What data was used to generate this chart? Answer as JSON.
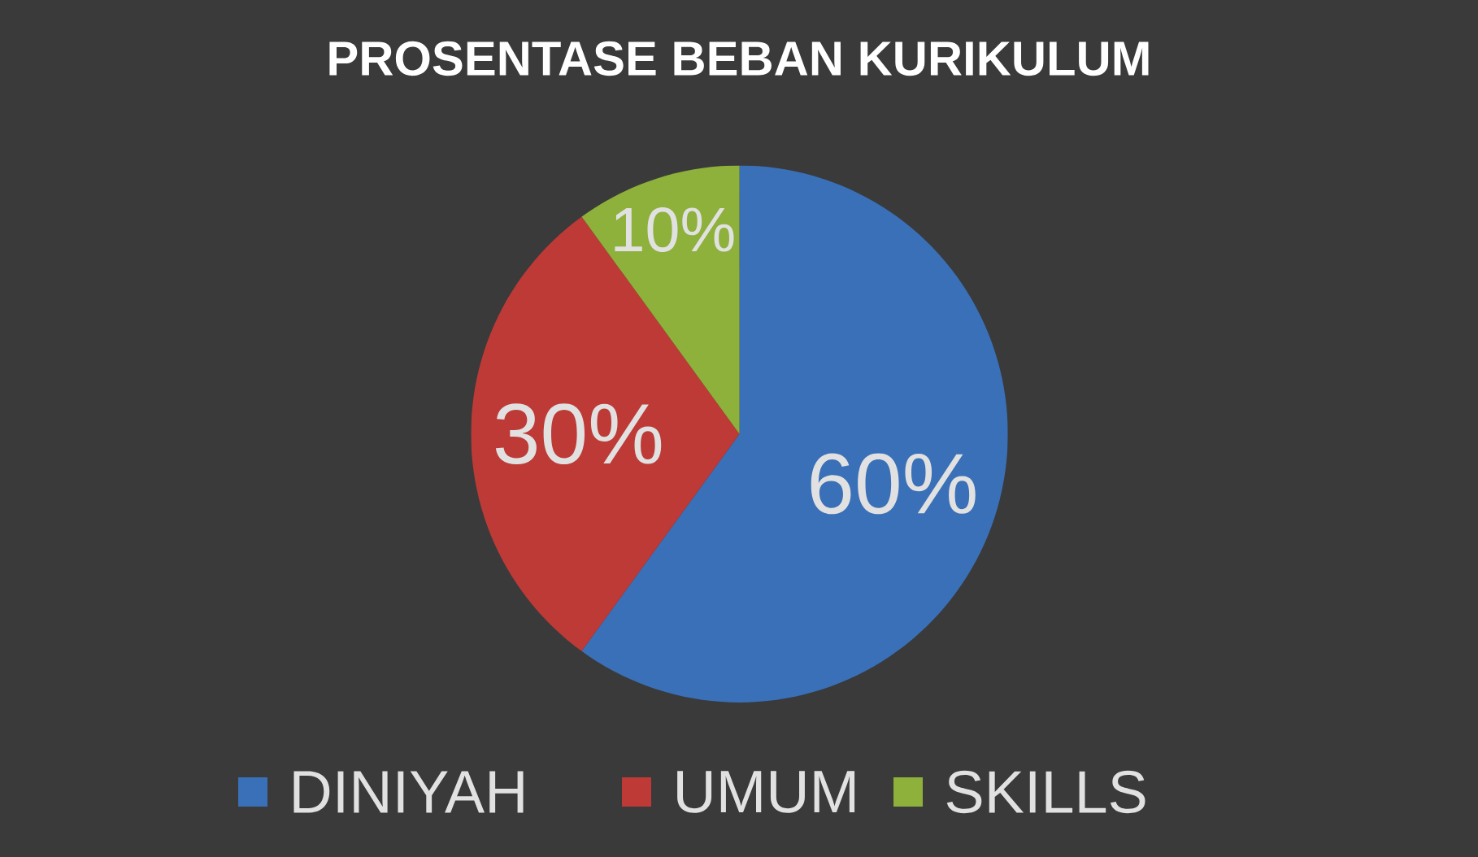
{
  "chart_data": {
    "type": "pie",
    "title": "PROSENTASE BEBAN KURIKULUM",
    "categories": [
      "DINIYAH",
      "UMUM",
      "SKILLS"
    ],
    "values": [
      60,
      30,
      10
    ],
    "value_labels": [
      "60%",
      "30%",
      "10%"
    ],
    "colors": [
      "#3a70b8",
      "#be3a36",
      "#8db13a"
    ],
    "legend": "bottom"
  }
}
